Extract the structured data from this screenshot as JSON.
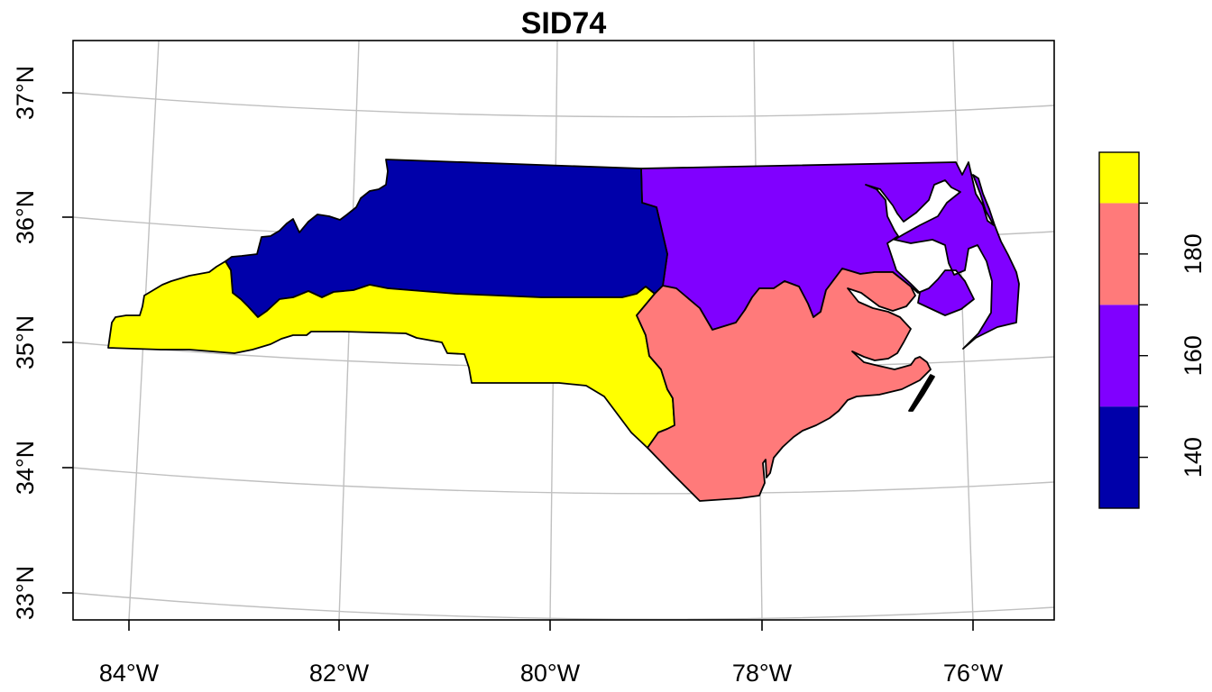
{
  "title": "SID74",
  "axes": {
    "x_ticks": [
      "84°W",
      "82°W",
      "80°W",
      "78°W",
      "76°W"
    ],
    "y_ticks": [
      "33°N",
      "34°N",
      "35°N",
      "36°N",
      "37°N"
    ]
  },
  "map_data": {
    "variable": "SID74",
    "classes": [
      {
        "range": [
          130,
          150
        ],
        "color": "#0000AA",
        "region": "north-central"
      },
      {
        "range": [
          150,
          170
        ],
        "color": "#8000FF",
        "region": "north-east"
      },
      {
        "range": [
          170,
          190
        ],
        "color": "#FF7A7A",
        "region": "south-east"
      },
      {
        "range": [
          190,
          200
        ],
        "color": "#FFFF00",
        "region": "south-west"
      }
    ]
  },
  "legend": {
    "ticks": [
      "140",
      "160",
      "180"
    ],
    "breaks": [
      130,
      150,
      170,
      190,
      200
    ]
  }
}
